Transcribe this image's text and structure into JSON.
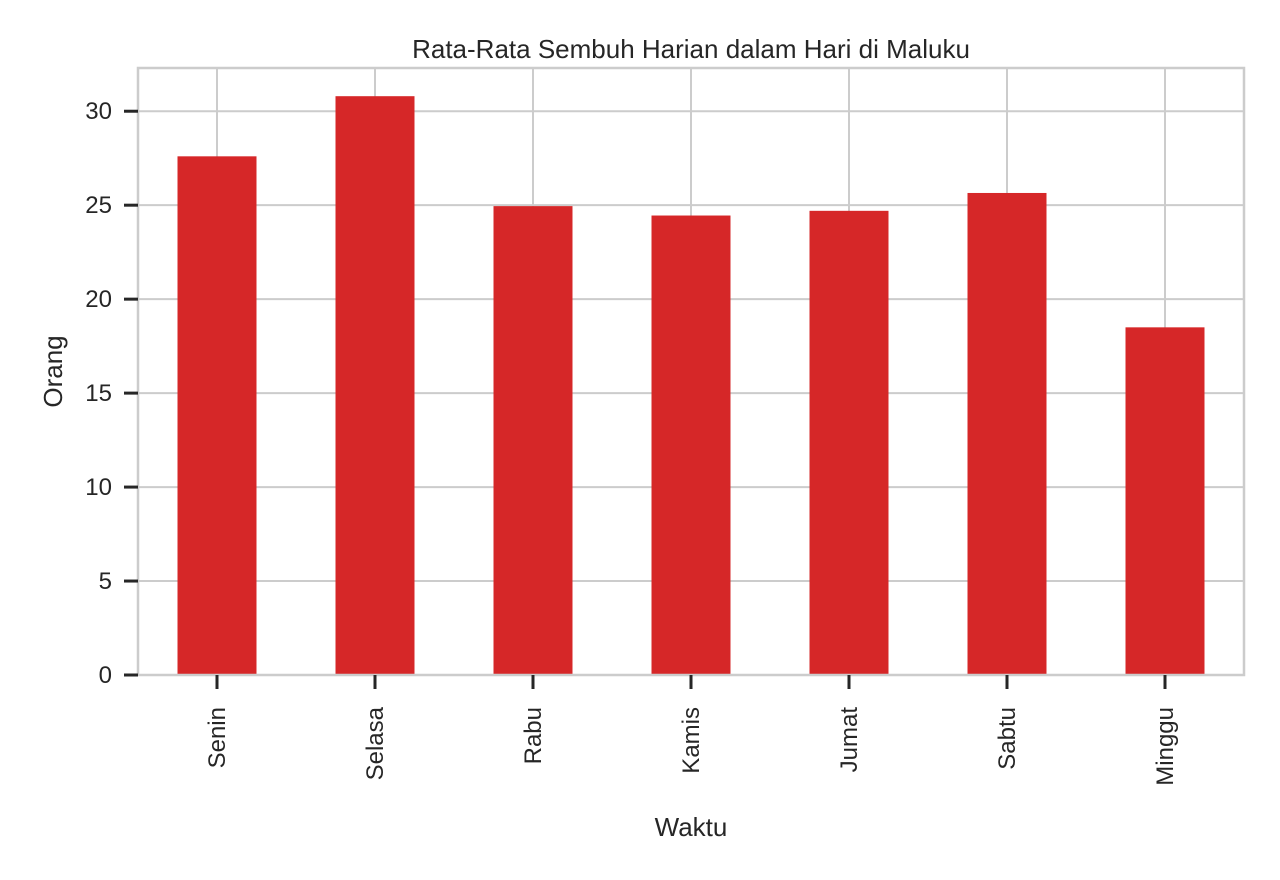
{
  "chart_data": {
    "type": "bar",
    "title": "Rata-Rata Sembuh Harian dalam Hari di Maluku",
    "xlabel": "Waktu",
    "ylabel": "Orang",
    "categories": [
      "Senin",
      "Selasa",
      "Rabu",
      "Kamis",
      "Jumat",
      "Sabtu",
      "Minggu"
    ],
    "values": [
      27.6,
      30.8,
      24.95,
      24.45,
      24.7,
      25.65,
      18.5
    ],
    "ylim": [
      0,
      32.3
    ],
    "yticks": [
      0,
      5,
      10,
      15,
      20,
      25,
      30
    ],
    "grid": true,
    "legend": "none",
    "colors": {
      "bar": "#d62728",
      "grid": "#cccccc",
      "frame": "#cccccc",
      "tick": "#262626"
    }
  }
}
